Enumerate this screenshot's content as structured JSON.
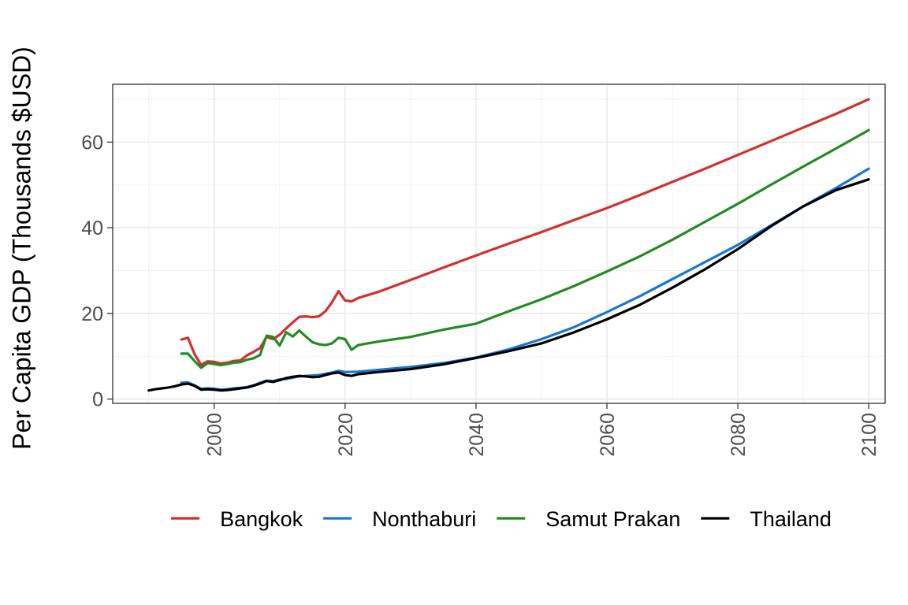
{
  "chart_data": {
    "type": "line",
    "title": "",
    "xlabel": "",
    "ylabel": "Per Capita GDP (Thousands $USD)",
    "xlim": [
      1984.5,
      2102.5
    ],
    "ylim": [
      -1,
      73.5
    ],
    "x_ticks": [
      "2000",
      "2020",
      "2040",
      "2060",
      "2080",
      "2100"
    ],
    "y_ticks": [
      "0",
      "20",
      "40",
      "60"
    ],
    "grid": true,
    "legend_position": "bottom",
    "series": [
      {
        "name": "Bangkok",
        "color": "#d32f2f",
        "points": [
          [
            1995,
            13.9
          ],
          [
            1996,
            14.3
          ],
          [
            1997,
            10.5
          ],
          [
            1998,
            8.0
          ],
          [
            1999,
            8.8
          ],
          [
            2000,
            8.7
          ],
          [
            2001,
            8.3
          ],
          [
            2002,
            8.5
          ],
          [
            2003,
            8.9
          ],
          [
            2004,
            9.0
          ],
          [
            2005,
            10.2
          ],
          [
            2006,
            11.0
          ],
          [
            2007,
            11.9
          ],
          [
            2008,
            14.5
          ],
          [
            2009,
            14.0
          ],
          [
            2010,
            15.0
          ],
          [
            2011,
            16.5
          ],
          [
            2012,
            17.9
          ],
          [
            2013,
            19.2
          ],
          [
            2014,
            19.3
          ],
          [
            2015,
            19.1
          ],
          [
            2016,
            19.3
          ],
          [
            2017,
            20.5
          ],
          [
            2018,
            22.6
          ],
          [
            2019,
            25.2
          ],
          [
            2020,
            23.0
          ],
          [
            2021,
            22.8
          ],
          [
            2022,
            23.6
          ],
          [
            2025,
            25.0
          ],
          [
            2030,
            27.8
          ],
          [
            2035,
            30.7
          ],
          [
            2040,
            33.5
          ],
          [
            2045,
            36.3
          ],
          [
            2050,
            39.0
          ],
          [
            2055,
            41.8
          ],
          [
            2060,
            44.6
          ],
          [
            2065,
            47.6
          ],
          [
            2070,
            50.7
          ],
          [
            2075,
            53.8
          ],
          [
            2080,
            57.0
          ],
          [
            2085,
            60.2
          ],
          [
            2090,
            63.4
          ],
          [
            2095,
            66.6
          ],
          [
            2100,
            70.0
          ]
        ]
      },
      {
        "name": "Nonthaburi",
        "color": "#1976d2",
        "points": [
          [
            1995,
            3.8
          ],
          [
            1996,
            3.9
          ],
          [
            1997,
            3.2
          ],
          [
            1998,
            2.4
          ],
          [
            1999,
            2.5
          ],
          [
            2000,
            2.4
          ],
          [
            2001,
            2.2
          ],
          [
            2002,
            2.3
          ],
          [
            2003,
            2.5
          ],
          [
            2004,
            2.6
          ],
          [
            2005,
            2.8
          ],
          [
            2006,
            3.2
          ],
          [
            2007,
            3.8
          ],
          [
            2008,
            4.3
          ],
          [
            2009,
            4.2
          ],
          [
            2010,
            4.6
          ],
          [
            2011,
            4.7
          ],
          [
            2012,
            5.0
          ],
          [
            2013,
            5.3
          ],
          [
            2014,
            5.4
          ],
          [
            2015,
            5.5
          ],
          [
            2016,
            5.6
          ],
          [
            2017,
            5.9
          ],
          [
            2018,
            6.2
          ],
          [
            2019,
            6.6
          ],
          [
            2020,
            6.3
          ],
          [
            2022,
            6.4
          ],
          [
            2025,
            6.8
          ],
          [
            2030,
            7.5
          ],
          [
            2035,
            8.4
          ],
          [
            2040,
            9.7
          ],
          [
            2045,
            11.6
          ],
          [
            2050,
            14.0
          ],
          [
            2055,
            16.8
          ],
          [
            2060,
            20.3
          ],
          [
            2065,
            24.0
          ],
          [
            2070,
            28.0
          ],
          [
            2075,
            32.0
          ],
          [
            2080,
            36.0
          ],
          [
            2085,
            40.5
          ],
          [
            2090,
            45.0
          ],
          [
            2095,
            49.3
          ],
          [
            2100,
            53.8
          ]
        ]
      },
      {
        "name": "Samut Prakan",
        "color": "#228b22",
        "points": [
          [
            1995,
            10.6
          ],
          [
            1996,
            10.6
          ],
          [
            1997,
            8.9
          ],
          [
            1998,
            7.3
          ],
          [
            1999,
            8.4
          ],
          [
            2000,
            8.2
          ],
          [
            2001,
            7.9
          ],
          [
            2002,
            8.2
          ],
          [
            2003,
            8.5
          ],
          [
            2004,
            8.6
          ],
          [
            2005,
            9.2
          ],
          [
            2006,
            9.5
          ],
          [
            2007,
            10.3
          ],
          [
            2008,
            14.8
          ],
          [
            2009,
            14.5
          ],
          [
            2010,
            12.5
          ],
          [
            2011,
            15.6
          ],
          [
            2012,
            14.6
          ],
          [
            2013,
            16.0
          ],
          [
            2014,
            14.6
          ],
          [
            2015,
            13.3
          ],
          [
            2016,
            12.8
          ],
          [
            2017,
            12.6
          ],
          [
            2018,
            13.0
          ],
          [
            2019,
            14.3
          ],
          [
            2020,
            14.0
          ],
          [
            2021,
            11.5
          ],
          [
            2022,
            12.6
          ],
          [
            2025,
            13.4
          ],
          [
            2030,
            14.5
          ],
          [
            2035,
            16.2
          ],
          [
            2040,
            17.6
          ],
          [
            2045,
            20.5
          ],
          [
            2050,
            23.3
          ],
          [
            2055,
            26.4
          ],
          [
            2060,
            29.8
          ],
          [
            2065,
            33.3
          ],
          [
            2070,
            37.2
          ],
          [
            2075,
            41.4
          ],
          [
            2080,
            45.6
          ],
          [
            2085,
            50.0
          ],
          [
            2090,
            54.3
          ],
          [
            2095,
            58.5
          ],
          [
            2100,
            62.8
          ]
        ]
      },
      {
        "name": "Thailand",
        "color": "#000000",
        "points": [
          [
            1990,
            2.0
          ],
          [
            1991,
            2.3
          ],
          [
            1992,
            2.5
          ],
          [
            1993,
            2.7
          ],
          [
            1994,
            3.0
          ],
          [
            1995,
            3.4
          ],
          [
            1996,
            3.6
          ],
          [
            1997,
            3.1
          ],
          [
            1998,
            2.2
          ],
          [
            1999,
            2.3
          ],
          [
            2000,
            2.2
          ],
          [
            2001,
            2.0
          ],
          [
            2002,
            2.1
          ],
          [
            2003,
            2.3
          ],
          [
            2004,
            2.5
          ],
          [
            2005,
            2.7
          ],
          [
            2006,
            3.1
          ],
          [
            2007,
            3.6
          ],
          [
            2008,
            4.2
          ],
          [
            2009,
            4.0
          ],
          [
            2010,
            4.4
          ],
          [
            2011,
            4.9
          ],
          [
            2012,
            5.2
          ],
          [
            2013,
            5.4
          ],
          [
            2014,
            5.3
          ],
          [
            2015,
            5.1
          ],
          [
            2016,
            5.2
          ],
          [
            2017,
            5.6
          ],
          [
            2018,
            6.0
          ],
          [
            2019,
            6.2
          ],
          [
            2020,
            5.6
          ],
          [
            2021,
            5.4
          ],
          [
            2022,
            5.8
          ],
          [
            2025,
            6.3
          ],
          [
            2030,
            7.0
          ],
          [
            2035,
            8.1
          ],
          [
            2040,
            9.6
          ],
          [
            2045,
            11.2
          ],
          [
            2050,
            13.0
          ],
          [
            2055,
            15.6
          ],
          [
            2060,
            18.6
          ],
          [
            2065,
            22.0
          ],
          [
            2070,
            26.0
          ],
          [
            2075,
            30.3
          ],
          [
            2080,
            35.0
          ],
          [
            2085,
            40.3
          ],
          [
            2090,
            45.0
          ],
          [
            2095,
            48.8
          ],
          [
            2100,
            51.3
          ]
        ]
      }
    ]
  }
}
